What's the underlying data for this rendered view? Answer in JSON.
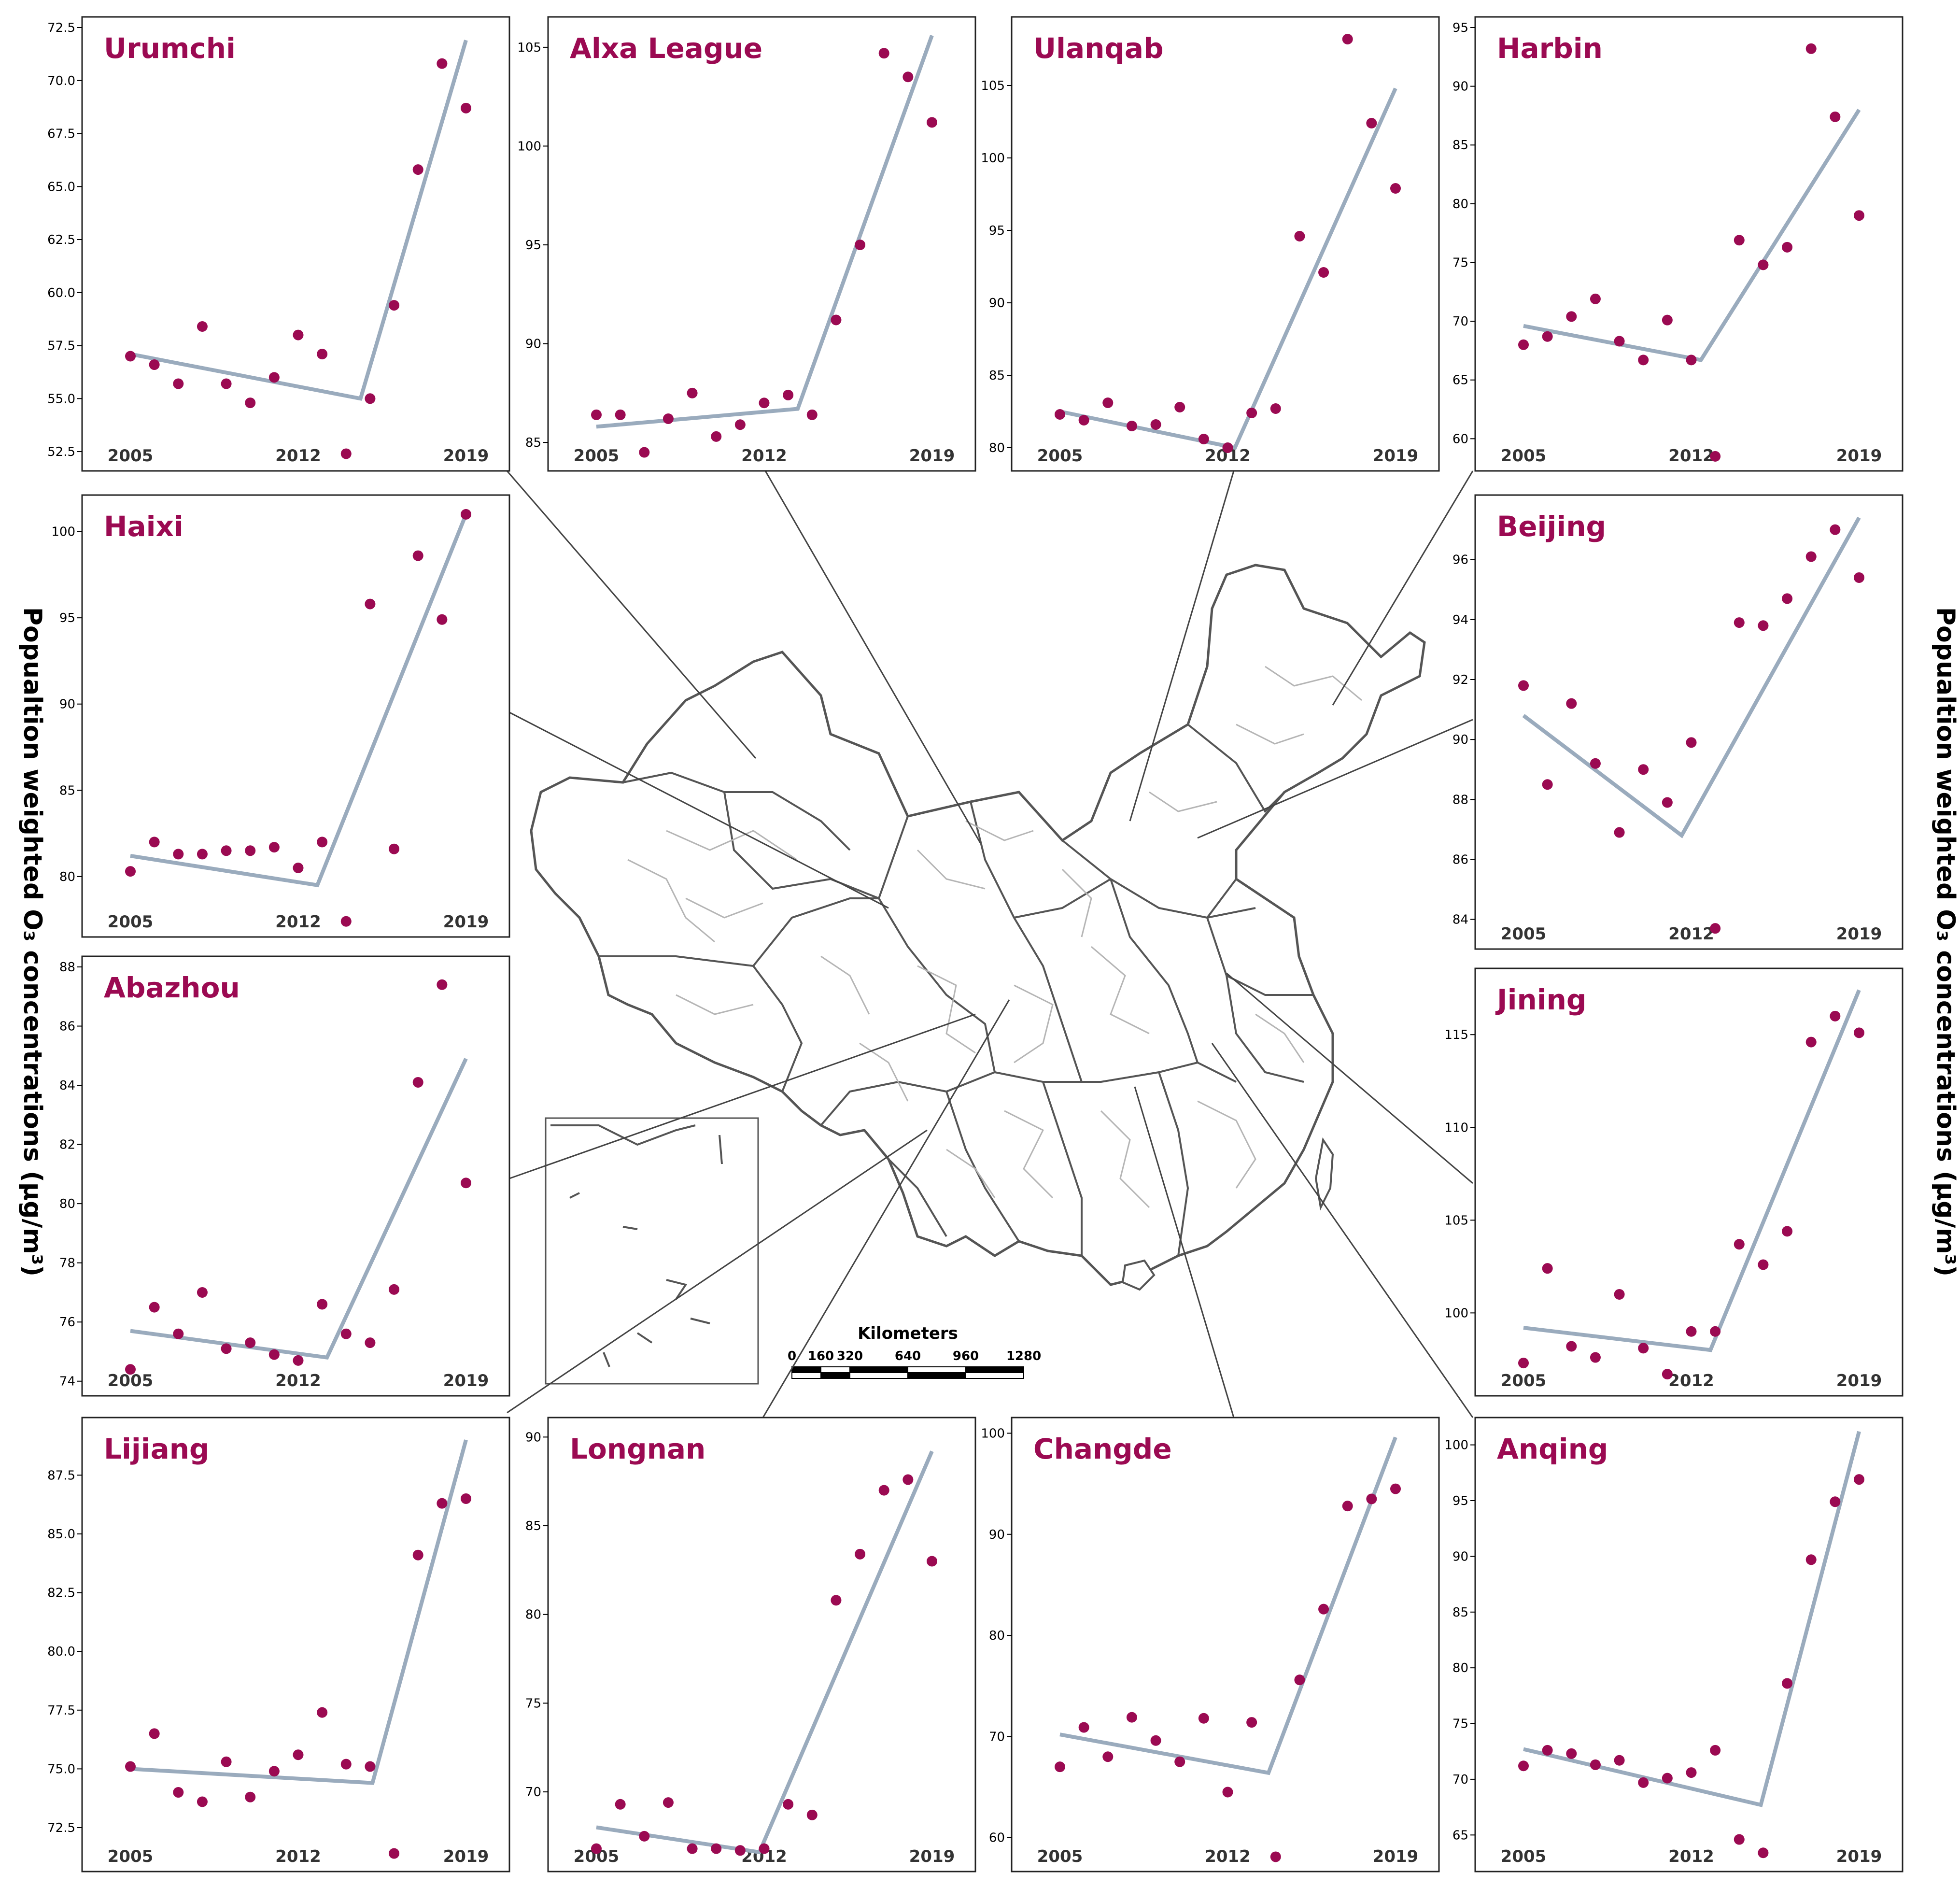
{
  "ylabel_left": "Popualtion weighted O₃ concentrations (μg/m³)",
  "ylabel_right": "Popualtion weighted O₃ concentrations (μg/m³)",
  "colors": {
    "point": "#9b0a52",
    "trend": "#9aabbd",
    "title": "#9b0a52",
    "map_border": "#555555",
    "map_inner": "#b5b5b5",
    "leader": "#444444",
    "frame": "#222222"
  },
  "scale_bar": {
    "title": "Kilometers",
    "labels": [
      "0",
      "160",
      "320",
      "640",
      "960",
      "1280"
    ]
  },
  "chart_data": [
    {
      "type": "scatter",
      "title": "Urumchi",
      "x": [
        2005,
        2006,
        2007,
        2008,
        2009,
        2010,
        2011,
        2012,
        2013,
        2014,
        2015,
        2016,
        2017,
        2018,
        2019
      ],
      "values": [
        57.0,
        56.6,
        55.7,
        58.4,
        55.7,
        54.8,
        56.0,
        58.0,
        57.1,
        52.4,
        55.0,
        59.4,
        65.8,
        70.8,
        68.7
      ],
      "trend": [
        [
          2005,
          57.1
        ],
        [
          2014.6,
          55.0
        ],
        [
          2019,
          71.9
        ]
      ],
      "xticks": [
        "2005",
        "2012",
        "2019"
      ],
      "yticks": [
        "52.5",
        "55.0",
        "57.5",
        "60.0",
        "62.5",
        "65.0",
        "67.5",
        "70.0",
        "72.5"
      ],
      "ylim": [
        52.0,
        72.5
      ]
    },
    {
      "type": "scatter",
      "title": "Alxa League",
      "x": [
        2005,
        2006,
        2007,
        2008,
        2009,
        2010,
        2011,
        2012,
        2013,
        2014,
        2015,
        2016,
        2017,
        2018,
        2019
      ],
      "values": [
        86.4,
        86.4,
        84.5,
        86.2,
        87.5,
        85.3,
        85.9,
        87.0,
        87.4,
        86.4,
        91.2,
        95.0,
        104.7,
        103.5,
        101.2
      ],
      "trend": [
        [
          2005,
          85.8
        ],
        [
          2013.4,
          86.7
        ],
        [
          2019,
          105.6
        ]
      ],
      "xticks": [
        "2005",
        "2012",
        "2019"
      ],
      "yticks": [
        "85",
        "90",
        "95",
        "100",
        "105"
      ],
      "ylim": [
        84.0,
        106.0
      ]
    },
    {
      "type": "scatter",
      "title": "Ulanqab",
      "x": [
        2005,
        2006,
        2007,
        2008,
        2009,
        2010,
        2011,
        2012,
        2013,
        2014,
        2015,
        2016,
        2017,
        2018,
        2019
      ],
      "values": [
        82.3,
        81.9,
        83.1,
        81.5,
        81.6,
        82.8,
        80.6,
        80.0,
        82.4,
        82.7,
        94.6,
        92.1,
        108.2,
        102.4,
        97.9
      ],
      "trend": [
        [
          2005,
          82.5
        ],
        [
          2012.3,
          80.0
        ],
        [
          2019,
          104.8
        ]
      ],
      "xticks": [
        "2005",
        "2012",
        "2019"
      ],
      "yticks": [
        "80",
        "85",
        "90",
        "95",
        "100",
        "105"
      ],
      "ylim": [
        79.0,
        109.0
      ]
    },
    {
      "type": "scatter",
      "title": "Harbin",
      "x": [
        2005,
        2006,
        2007,
        2008,
        2009,
        2010,
        2011,
        2012,
        2013,
        2014,
        2015,
        2016,
        2017,
        2018,
        2019
      ],
      "values": [
        68.0,
        68.7,
        70.4,
        71.9,
        68.3,
        66.7,
        70.1,
        66.7,
        58.5,
        76.9,
        74.8,
        76.3,
        93.2,
        87.4,
        79.0
      ],
      "trend": [
        [
          2005,
          69.6
        ],
        [
          2012.4,
          66.7
        ],
        [
          2019,
          88.0
        ]
      ],
      "xticks": [
        "2005",
        "2012",
        "2019"
      ],
      "yticks": [
        "60",
        "65",
        "70",
        "75",
        "80",
        "85",
        "90",
        "95"
      ],
      "ylim": [
        58.0,
        95.0
      ]
    },
    {
      "type": "scatter",
      "title": "Haixi",
      "x": [
        2005,
        2006,
        2007,
        2008,
        2009,
        2010,
        2011,
        2012,
        2013,
        2014,
        2015,
        2016,
        2017,
        2018,
        2019
      ],
      "values": [
        80.3,
        82.0,
        81.3,
        81.3,
        81.5,
        81.5,
        81.7,
        80.5,
        82.0,
        77.4,
        95.8,
        81.6,
        98.6,
        94.9,
        101.0
      ],
      "trend": [
        [
          2005,
          81.2
        ],
        [
          2012.8,
          79.5
        ],
        [
          2019,
          101.0
        ]
      ],
      "xticks": [
        "2005",
        "2012",
        "2019"
      ],
      "yticks": [
        "80",
        "85",
        "90",
        "95",
        "100"
      ],
      "ylim": [
        77.0,
        101.5
      ]
    },
    {
      "type": "scatter",
      "title": "Beijing",
      "x": [
        2005,
        2006,
        2007,
        2008,
        2009,
        2010,
        2011,
        2012,
        2013,
        2014,
        2015,
        2016,
        2017,
        2018,
        2019
      ],
      "values": [
        91.8,
        88.5,
        91.2,
        89.2,
        86.9,
        89.0,
        87.9,
        89.9,
        83.7,
        93.9,
        93.8,
        94.7,
        96.1,
        97.0,
        95.4
      ],
      "trend": [
        [
          2005,
          90.8
        ],
        [
          2011.6,
          86.8
        ],
        [
          2019,
          97.4
        ]
      ],
      "xticks": [
        "2005",
        "2012",
        "2019"
      ],
      "yticks": [
        "84",
        "86",
        "88",
        "90",
        "92",
        "94",
        "96"
      ],
      "ylim": [
        83.3,
        97.8
      ]
    },
    {
      "type": "scatter",
      "title": "Abazhou",
      "x": [
        2005,
        2006,
        2007,
        2008,
        2009,
        2010,
        2011,
        2012,
        2013,
        2014,
        2015,
        2016,
        2017,
        2018,
        2019
      ],
      "values": [
        74.4,
        76.5,
        75.6,
        77.0,
        75.1,
        75.3,
        74.9,
        74.7,
        76.6,
        75.6,
        75.3,
        77.1,
        84.1,
        87.4,
        80.7
      ],
      "trend": [
        [
          2005,
          75.7
        ],
        [
          2013.2,
          74.8
        ],
        [
          2019,
          84.9
        ]
      ],
      "xticks": [
        "2005",
        "2012",
        "2019"
      ],
      "yticks": [
        "74",
        "76",
        "78",
        "80",
        "82",
        "84",
        "86",
        "88"
      ],
      "ylim": [
        73.8,
        88.0
      ]
    },
    {
      "type": "scatter",
      "title": "Jining",
      "x": [
        2005,
        2006,
        2007,
        2008,
        2009,
        2010,
        2011,
        2012,
        2013,
        2014,
        2015,
        2016,
        2017,
        2018,
        2019
      ],
      "values": [
        97.3,
        102.4,
        98.2,
        97.6,
        101.0,
        98.1,
        96.7,
        99.0,
        99.0,
        103.7,
        102.6,
        104.4,
        114.6,
        116.0,
        115.1
      ],
      "trend": [
        [
          2005,
          99.2
        ],
        [
          2012.8,
          98.0
        ],
        [
          2019,
          117.4
        ]
      ],
      "xticks": [
        "2005",
        "2012",
        "2019"
      ],
      "yticks": [
        "100",
        "105",
        "110",
        "115"
      ],
      "ylim": [
        96.0,
        118.0
      ]
    },
    {
      "type": "scatter",
      "title": "Lijiang",
      "x": [
        2005,
        2006,
        2007,
        2008,
        2009,
        2010,
        2011,
        2012,
        2013,
        2014,
        2015,
        2016,
        2017,
        2018,
        2019
      ],
      "values": [
        75.1,
        76.5,
        74.0,
        73.6,
        75.3,
        73.8,
        74.9,
        75.6,
        77.4,
        75.2,
        75.1,
        71.4,
        84.1,
        86.3,
        86.5
      ],
      "trend": [
        [
          2005,
          75.0
        ],
        [
          2015.1,
          74.4
        ],
        [
          2019,
          89.0
        ]
      ],
      "xticks": [
        "2005",
        "2012",
        "2019"
      ],
      "yticks": [
        "72.5",
        "75.0",
        "77.5",
        "80.0",
        "82.5",
        "85.0",
        "87.5"
      ],
      "ylim": [
        71.0,
        89.5
      ]
    },
    {
      "type": "scatter",
      "title": "Longnan",
      "x": [
        2005,
        2006,
        2007,
        2008,
        2009,
        2010,
        2011,
        2012,
        2013,
        2014,
        2015,
        2016,
        2017,
        2018,
        2019
      ],
      "values": [
        66.8,
        69.3,
        67.5,
        69.4,
        66.8,
        66.8,
        66.7,
        66.8,
        69.3,
        68.7,
        80.8,
        83.4,
        87.0,
        87.6,
        83.0
      ],
      "trend": [
        [
          2005,
          68.0
        ],
        [
          2011.8,
          66.6
        ],
        [
          2019,
          89.2
        ]
      ],
      "xticks": [
        "2005",
        "2012",
        "2019"
      ],
      "yticks": [
        "70",
        "75",
        "80",
        "85",
        "90"
      ],
      "ylim": [
        66.0,
        90.5
      ]
    },
    {
      "type": "scatter",
      "title": "Changde",
      "x": [
        2005,
        2006,
        2007,
        2008,
        2009,
        2010,
        2011,
        2012,
        2013,
        2014,
        2015,
        2016,
        2017,
        2018,
        2019
      ],
      "values": [
        67.0,
        70.9,
        68.0,
        71.9,
        69.6,
        67.5,
        71.8,
        64.5,
        71.4,
        58.1,
        75.6,
        82.6,
        92.8,
        93.5,
        94.5
      ],
      "trend": [
        [
          2005,
          70.2
        ],
        [
          2013.7,
          66.4
        ],
        [
          2019,
          99.6
        ]
      ],
      "xticks": [
        "2005",
        "2012",
        "2019"
      ],
      "yticks": [
        "60",
        "70",
        "80",
        "90",
        "100"
      ],
      "ylim": [
        57.5,
        100.5
      ]
    },
    {
      "type": "scatter",
      "title": "Anqing",
      "x": [
        2005,
        2006,
        2007,
        2008,
        2009,
        2010,
        2011,
        2012,
        2013,
        2014,
        2015,
        2016,
        2017,
        2018,
        2019
      ],
      "values": [
        71.2,
        72.6,
        72.3,
        71.3,
        71.7,
        69.7,
        70.1,
        70.6,
        72.6,
        64.6,
        63.4,
        78.6,
        89.7,
        94.9,
        96.9
      ],
      "trend": [
        [
          2005,
          72.7
        ],
        [
          2014.9,
          67.7
        ],
        [
          2019,
          101.2
        ]
      ],
      "xticks": [
        "2005",
        "2012",
        "2019"
      ],
      "yticks": [
        "65",
        "70",
        "75",
        "80",
        "85",
        "90",
        "95",
        "100"
      ],
      "ylim": [
        62.5,
        101.5
      ]
    }
  ]
}
